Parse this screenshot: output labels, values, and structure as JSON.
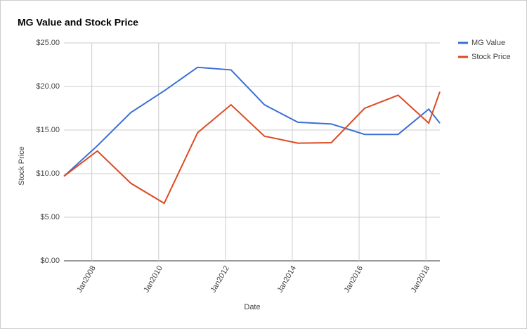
{
  "chart_data": {
    "type": "line",
    "title": "MG Value and Stock Price",
    "xlabel": "Date",
    "ylabel": "Stock Price",
    "x": [
      "2007-03",
      "2008-03",
      "2009-03",
      "2010-03",
      "2011-03",
      "2012-03",
      "2013-03",
      "2014-03",
      "2015-03",
      "2016-03",
      "2017-03",
      "2018-02",
      "2018-06"
    ],
    "series": [
      {
        "name": "MG Value",
        "color": "#3a6fd6",
        "values": [
          9.7,
          13.2,
          17.0,
          19.5,
          22.2,
          21.9,
          17.9,
          15.9,
          15.7,
          14.5,
          14.5,
          17.4,
          15.8
        ]
      },
      {
        "name": "Stock Price",
        "color": "#dc4a21",
        "values": [
          9.7,
          12.6,
          8.9,
          6.6,
          14.7,
          17.9,
          14.3,
          13.5,
          13.55,
          17.5,
          19.0,
          15.8,
          19.4
        ]
      }
    ],
    "xlim": [
      "2007-03",
      "2018-06"
    ],
    "xticks": [
      {
        "value": "2008-01",
        "label": "Jan2008"
      },
      {
        "value": "2010-01",
        "label": "Jan2010"
      },
      {
        "value": "2012-01",
        "label": "Jan2012"
      },
      {
        "value": "2014-01",
        "label": "Jan2014"
      },
      {
        "value": "2016-01",
        "label": "Jan2016"
      },
      {
        "value": "2018-01",
        "label": "Jan2018"
      }
    ],
    "ylim": [
      0,
      25
    ],
    "yticks": [
      {
        "value": 0,
        "label": "$0.00"
      },
      {
        "value": 5,
        "label": "$5.00"
      },
      {
        "value": 10,
        "label": "$10.00"
      },
      {
        "value": 15,
        "label": "$15.00"
      },
      {
        "value": 20,
        "label": "$20.00"
      },
      {
        "value": 25,
        "label": "$25.00"
      }
    ],
    "grid": true,
    "legend": "right"
  }
}
